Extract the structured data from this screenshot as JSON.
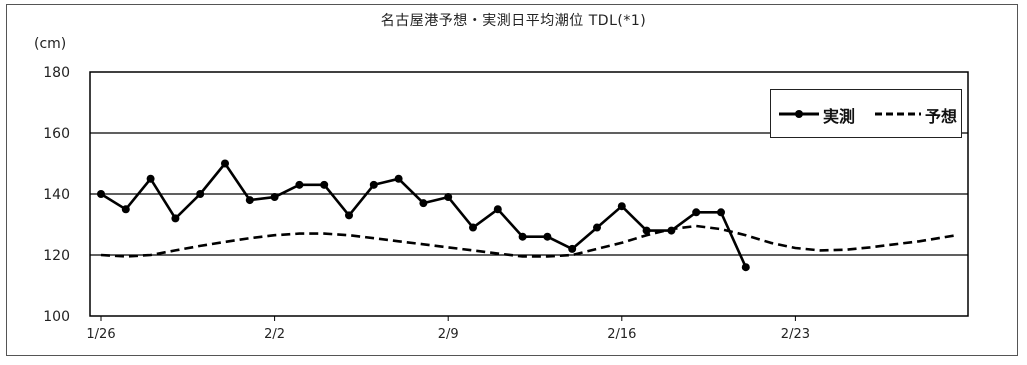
{
  "chart_data": {
    "type": "line",
    "title": "名古屋港予想・実測日平均潮位 TDL(*1)",
    "ylabel": "(cm)",
    "xlabel": "",
    "ylim": [
      100,
      180
    ],
    "yticks": [
      100,
      120,
      140,
      160,
      180
    ],
    "xlim": [
      0,
      34.7
    ],
    "xticks": [
      {
        "pos": 0,
        "label": "1/26"
      },
      {
        "pos": 7,
        "label": "2/2"
      },
      {
        "pos": 14,
        "label": "2/9"
      },
      {
        "pos": 21,
        "label": "2/16"
      },
      {
        "pos": 28,
        "label": "2/23"
      }
    ],
    "grid": "horizontal",
    "legend": "top-right",
    "series": [
      {
        "name": "実測",
        "style": "solid-markers",
        "color": "#000000",
        "x": [
          0,
          1,
          2,
          3,
          4,
          5,
          6,
          7,
          8,
          9,
          10,
          11,
          12,
          13,
          14,
          15,
          16,
          17,
          18,
          19,
          20,
          21,
          22,
          23,
          24,
          25,
          26
        ],
        "values": [
          140,
          135,
          145,
          132,
          140,
          150,
          138,
          139,
          143,
          143,
          133,
          143,
          145,
          137,
          139,
          129,
          135,
          126,
          126,
          122,
          129,
          136,
          128,
          128,
          134,
          134,
          116
        ]
      },
      {
        "name": "予想",
        "style": "dashed",
        "color": "#000000",
        "x": [
          0,
          1,
          2,
          3,
          4,
          5,
          6,
          7,
          8,
          9,
          10,
          11,
          12,
          13,
          14,
          15,
          16,
          17,
          18,
          19,
          20,
          21,
          22,
          23,
          24,
          25,
          26,
          27,
          28,
          29,
          30,
          31,
          32,
          33,
          34.5
        ],
        "values": [
          120,
          119.5,
          120,
          121.5,
          123,
          124.3,
          125.5,
          126.5,
          127,
          127,
          126.5,
          125.5,
          124.5,
          123.5,
          122.5,
          121.5,
          120.5,
          119.5,
          119.5,
          120,
          122,
          124,
          126.5,
          128.5,
          129.5,
          128.5,
          126.5,
          124,
          122.3,
          121.5,
          121.7,
          122.5,
          123.5,
          124.5,
          126.5
        ]
      }
    ]
  }
}
